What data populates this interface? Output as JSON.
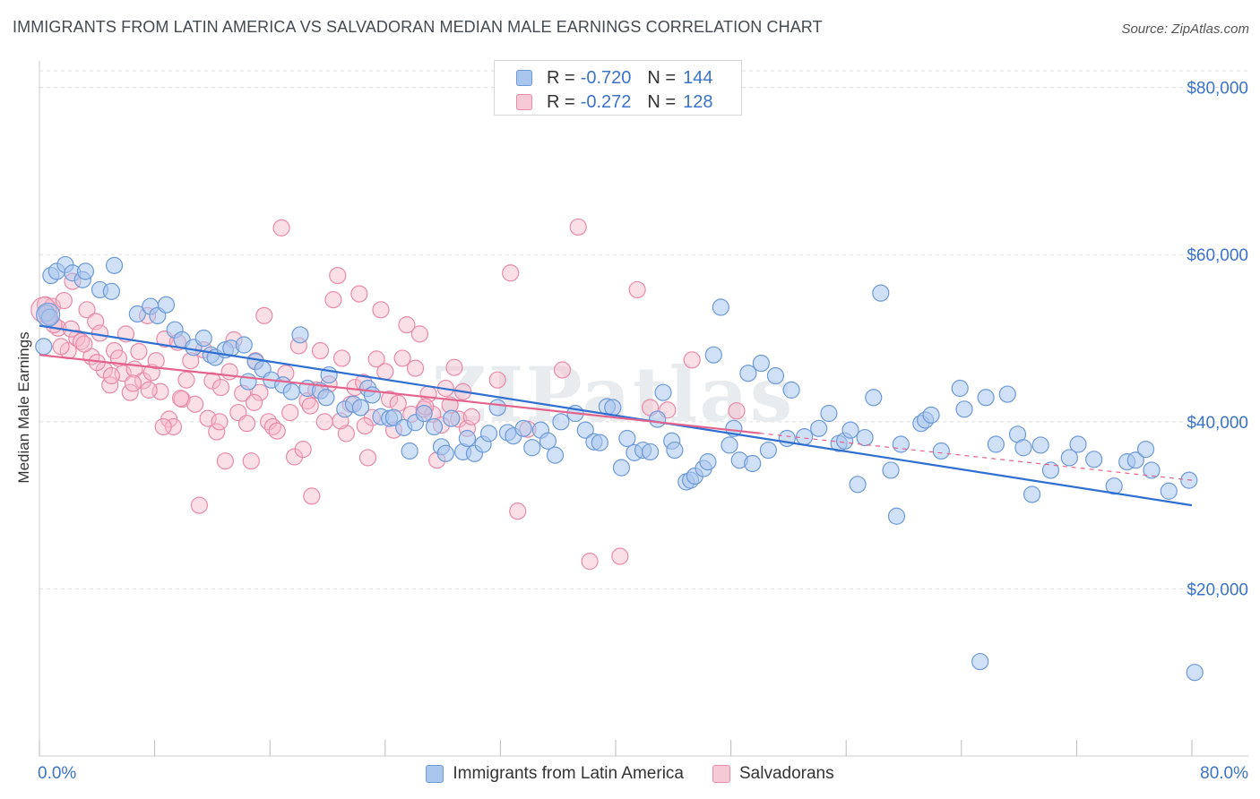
{
  "header": {
    "title": "IMMIGRANTS FROM LATIN AMERICA VS SALVADORAN MEDIAN MALE EARNINGS CORRELATION CHART",
    "source": "Source: ZipAtlas.com"
  },
  "legend_top": {
    "rows": [
      {
        "r_label": "R =",
        "r_value": "-0.720",
        "n_label": "N =",
        "n_value": "144"
      },
      {
        "r_label": "R =",
        "r_value": "-0.272",
        "n_label": "N =",
        "n_value": "128"
      }
    ]
  },
  "legend_bottom": {
    "items": [
      {
        "label": "Immigrants from Latin America"
      },
      {
        "label": "Salvadorans"
      }
    ]
  },
  "colors": {
    "blue_fill": "#a9c6ee",
    "blue_stroke": "#6d9ad8",
    "blue_line": "#2e6fd0",
    "pink_fill": "#f6b8ca",
    "pink_stroke": "#e98aa9",
    "pink_line": "#e4638d",
    "axis_label": "#3a73c9",
    "grid": "#dddddd"
  },
  "chart_data": {
    "type": "scatter",
    "title": "IMMIGRANTS FROM LATIN AMERICA VS SALVADORAN MEDIAN MALE EARNINGS CORRELATION CHART",
    "xlabel": "",
    "ylabel": "Median Male Earnings",
    "xlim": [
      0,
      80
    ],
    "ylim": [
      0,
      82000
    ],
    "x_tick_labels": [
      "0.0%",
      "80.0%"
    ],
    "y_ticks": [
      20000,
      40000,
      60000,
      80000
    ],
    "y_tick_labels": [
      "$20,000",
      "$40,000",
      "$60,000",
      "$80,000"
    ],
    "grid": true,
    "legend_position": "top-center",
    "watermark": "ZIPatlas",
    "series": [
      {
        "name": "Immigrants from Latin America",
        "color": "#6d9ad8",
        "r": -0.72,
        "n": 144,
        "trend": {
          "x0": 0,
          "y0": 51500,
          "x1": 80,
          "y1": 30000,
          "dashed_from": null
        },
        "points": [
          [
            0.3,
            49000
          ],
          [
            0.5,
            53000
          ],
          [
            0.7,
            52500
          ],
          [
            0.8,
            57500
          ],
          [
            1.2,
            58000
          ],
          [
            1.8,
            58800
          ],
          [
            2.3,
            57800
          ],
          [
            3.0,
            57000
          ],
          [
            3.2,
            58000
          ],
          [
            4.2,
            55800
          ],
          [
            5.2,
            58700
          ],
          [
            5.0,
            55600
          ],
          [
            6.8,
            52900
          ],
          [
            7.7,
            53800
          ],
          [
            8.2,
            52700
          ],
          [
            8.8,
            54000
          ],
          [
            9.4,
            51000
          ],
          [
            9.9,
            49800
          ],
          [
            10.7,
            48900
          ],
          [
            11.4,
            50000
          ],
          [
            11.9,
            48000
          ],
          [
            12.2,
            47700
          ],
          [
            12.9,
            48600
          ],
          [
            13.3,
            48800
          ],
          [
            14.2,
            49200
          ],
          [
            14.5,
            44800
          ],
          [
            15.0,
            47200
          ],
          [
            15.5,
            46300
          ],
          [
            16.1,
            45000
          ],
          [
            16.9,
            44400
          ],
          [
            17.5,
            43600
          ],
          [
            18.1,
            50400
          ],
          [
            18.6,
            44000
          ],
          [
            19.5,
            43700
          ],
          [
            19.9,
            42900
          ],
          [
            20.1,
            45600
          ],
          [
            21.2,
            41500
          ],
          [
            21.8,
            42100
          ],
          [
            22.3,
            41700
          ],
          [
            22.8,
            44000
          ],
          [
            23.1,
            43200
          ],
          [
            23.7,
            40600
          ],
          [
            24.3,
            40400
          ],
          [
            24.6,
            40500
          ],
          [
            25.3,
            39300
          ],
          [
            25.7,
            36500
          ],
          [
            26.1,
            39900
          ],
          [
            26.7,
            41000
          ],
          [
            27.4,
            39400
          ],
          [
            27.9,
            37000
          ],
          [
            28.2,
            36200
          ],
          [
            28.6,
            40400
          ],
          [
            29.4,
            36400
          ],
          [
            29.7,
            38000
          ],
          [
            30.2,
            36200
          ],
          [
            30.8,
            37300
          ],
          [
            31.2,
            38600
          ],
          [
            31.8,
            41700
          ],
          [
            32.5,
            38700
          ],
          [
            32.9,
            38300
          ],
          [
            33.6,
            39200
          ],
          [
            34.2,
            36900
          ],
          [
            34.8,
            39000
          ],
          [
            35.3,
            37700
          ],
          [
            35.8,
            36000
          ],
          [
            36.2,
            40000
          ],
          [
            37.2,
            41000
          ],
          [
            37.9,
            39000
          ],
          [
            38.5,
            37600
          ],
          [
            38.9,
            37500
          ],
          [
            39.4,
            41800
          ],
          [
            39.8,
            41700
          ],
          [
            40.4,
            34500
          ],
          [
            40.8,
            38000
          ],
          [
            41.3,
            36300
          ],
          [
            41.9,
            36600
          ],
          [
            42.4,
            36400
          ],
          [
            42.9,
            40300
          ],
          [
            43.3,
            43500
          ],
          [
            43.9,
            37700
          ],
          [
            44.1,
            36600
          ],
          [
            44.9,
            32800
          ],
          [
            45.2,
            33000
          ],
          [
            45.5,
            33500
          ],
          [
            46.1,
            34400
          ],
          [
            46.4,
            35200
          ],
          [
            46.8,
            48000
          ],
          [
            47.3,
            53700
          ],
          [
            47.9,
            37200
          ],
          [
            48.2,
            39200
          ],
          [
            48.6,
            35400
          ],
          [
            49.2,
            45800
          ],
          [
            49.5,
            35000
          ],
          [
            50.1,
            47000
          ],
          [
            50.6,
            36600
          ],
          [
            51.1,
            45500
          ],
          [
            51.9,
            38000
          ],
          [
            52.2,
            43800
          ],
          [
            53.1,
            38200
          ],
          [
            54.1,
            39200
          ],
          [
            54.8,
            41000
          ],
          [
            55.5,
            37400
          ],
          [
            55.9,
            37700
          ],
          [
            56.3,
            39000
          ],
          [
            56.8,
            32500
          ],
          [
            57.3,
            38100
          ],
          [
            57.9,
            42900
          ],
          [
            58.4,
            55400
          ],
          [
            59.1,
            34200
          ],
          [
            59.5,
            28700
          ],
          [
            59.8,
            37300
          ],
          [
            61.2,
            39800
          ],
          [
            61.5,
            40200
          ],
          [
            61.9,
            40800
          ],
          [
            62.6,
            36500
          ],
          [
            63.9,
            44000
          ],
          [
            64.2,
            41500
          ],
          [
            65.3,
            11300
          ],
          [
            65.7,
            42900
          ],
          [
            66.4,
            37300
          ],
          [
            67.2,
            43300
          ],
          [
            67.9,
            38500
          ],
          [
            68.3,
            36900
          ],
          [
            68.9,
            31300
          ],
          [
            69.5,
            37200
          ],
          [
            70.2,
            34200
          ],
          [
            71.5,
            35700
          ],
          [
            72.1,
            37300
          ],
          [
            73.2,
            35500
          ],
          [
            74.6,
            32300
          ],
          [
            75.5,
            35200
          ],
          [
            76.1,
            35400
          ],
          [
            76.8,
            36700
          ],
          [
            77.2,
            34200
          ],
          [
            78.4,
            31700
          ],
          [
            79.8,
            33000
          ],
          [
            80.2,
            10000
          ]
        ]
      },
      {
        "name": "Salvadorans",
        "color": "#e98aa9",
        "r": -0.272,
        "n": 128,
        "trend": {
          "x0": 0,
          "y0": 48000,
          "x1": 80,
          "y1": 33000,
          "dashed_from": 50
        },
        "points": [
          [
            0.4,
            54000
          ],
          [
            0.6,
            52600
          ],
          [
            0.9,
            53800
          ],
          [
            1.3,
            51200
          ],
          [
            1.7,
            54500
          ],
          [
            2.0,
            48500
          ],
          [
            2.3,
            56800
          ],
          [
            2.6,
            50000
          ],
          [
            2.9,
            49600
          ],
          [
            3.3,
            53400
          ],
          [
            3.6,
            47800
          ],
          [
            3.9,
            52000
          ],
          [
            4.2,
            50600
          ],
          [
            4.5,
            46200
          ],
          [
            4.9,
            44400
          ],
          [
            5.2,
            48500
          ],
          [
            5.5,
            47600
          ],
          [
            5.8,
            45800
          ],
          [
            6.0,
            50500
          ],
          [
            6.3,
            43500
          ],
          [
            6.6,
            46300
          ],
          [
            6.9,
            48400
          ],
          [
            7.2,
            44900
          ],
          [
            7.5,
            52700
          ],
          [
            7.8,
            45900
          ],
          [
            8.1,
            47300
          ],
          [
            8.4,
            43600
          ],
          [
            8.7,
            49900
          ],
          [
            9.0,
            40300
          ],
          [
            9.3,
            39400
          ],
          [
            9.6,
            49500
          ],
          [
            9.9,
            42700
          ],
          [
            10.2,
            45000
          ],
          [
            10.5,
            47300
          ],
          [
            10.8,
            42100
          ],
          [
            11.1,
            30000
          ],
          [
            11.4,
            48600
          ],
          [
            11.7,
            40400
          ],
          [
            12.0,
            44900
          ],
          [
            12.3,
            38800
          ],
          [
            12.6,
            44100
          ],
          [
            12.9,
            35300
          ],
          [
            13.2,
            46000
          ],
          [
            13.5,
            49800
          ],
          [
            13.8,
            41100
          ],
          [
            14.1,
            43400
          ],
          [
            14.4,
            39800
          ],
          [
            14.7,
            35300
          ],
          [
            15.0,
            47300
          ],
          [
            15.3,
            43500
          ],
          [
            15.6,
            52700
          ],
          [
            15.9,
            40000
          ],
          [
            16.2,
            39400
          ],
          [
            16.5,
            38900
          ],
          [
            16.8,
            63200
          ],
          [
            17.1,
            45800
          ],
          [
            17.4,
            41100
          ],
          [
            17.7,
            35800
          ],
          [
            18.0,
            49100
          ],
          [
            18.3,
            36700
          ],
          [
            18.6,
            42500
          ],
          [
            18.9,
            31100
          ],
          [
            19.2,
            43800
          ],
          [
            19.5,
            48500
          ],
          [
            19.8,
            40000
          ],
          [
            20.1,
            44500
          ],
          [
            20.4,
            54600
          ],
          [
            20.7,
            57500
          ],
          [
            21.0,
            47600
          ],
          [
            21.3,
            38600
          ],
          [
            21.6,
            42100
          ],
          [
            21.9,
            44100
          ],
          [
            22.2,
            55300
          ],
          [
            22.5,
            44700
          ],
          [
            22.8,
            35700
          ],
          [
            23.1,
            40500
          ],
          [
            23.4,
            47500
          ],
          [
            23.7,
            53400
          ],
          [
            24.0,
            46000
          ],
          [
            24.3,
            42700
          ],
          [
            24.6,
            39000
          ],
          [
            24.9,
            42200
          ],
          [
            25.2,
            47600
          ],
          [
            25.5,
            51600
          ],
          [
            25.8,
            40900
          ],
          [
            26.1,
            46400
          ],
          [
            26.4,
            50500
          ],
          [
            26.7,
            41500
          ],
          [
            27.0,
            43300
          ],
          [
            27.3,
            40900
          ],
          [
            27.6,
            35400
          ],
          [
            27.9,
            39600
          ],
          [
            28.2,
            44000
          ],
          [
            28.5,
            42000
          ],
          [
            28.8,
            46500
          ],
          [
            29.1,
            40300
          ],
          [
            29.4,
            43600
          ],
          [
            29.7,
            39200
          ],
          [
            30.0,
            40600
          ],
          [
            31.8,
            45000
          ],
          [
            32.7,
            57800
          ],
          [
            33.2,
            29300
          ],
          [
            33.9,
            39100
          ],
          [
            36.3,
            46200
          ],
          [
            37.4,
            63300
          ],
          [
            38.2,
            23300
          ],
          [
            40.3,
            23900
          ],
          [
            41.5,
            55800
          ],
          [
            42.4,
            41700
          ],
          [
            43.6,
            41400
          ],
          [
            45.3,
            47400
          ],
          [
            48.4,
            41300
          ],
          [
            1.0,
            51600
          ],
          [
            1.5,
            49000
          ],
          [
            2.2,
            51100
          ],
          [
            3.1,
            49300
          ],
          [
            4.0,
            47100
          ],
          [
            5.0,
            45500
          ],
          [
            6.5,
            44600
          ],
          [
            7.6,
            43800
          ],
          [
            8.6,
            39400
          ],
          [
            9.8,
            42800
          ],
          [
            12.5,
            40000
          ],
          [
            14.9,
            42300
          ],
          [
            18.8,
            41900
          ],
          [
            20.9,
            40100
          ],
          [
            22.6,
            39500
          ],
          [
            26.8,
            41800
          ]
        ]
      }
    ]
  }
}
